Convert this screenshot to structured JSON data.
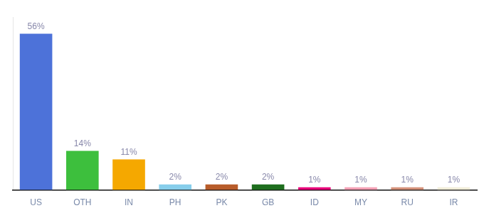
{
  "chart_data": {
    "type": "bar",
    "categories": [
      "US",
      "OTH",
      "IN",
      "PH",
      "PK",
      "GB",
      "ID",
      "MY",
      "RU",
      "IR"
    ],
    "values": [
      56,
      14,
      11,
      2,
      2,
      2,
      1,
      1,
      1,
      1
    ],
    "value_labels": [
      "56%",
      "14%",
      "11%",
      "2%",
      "2%",
      "2%",
      "1%",
      "1%",
      "1%",
      "1%"
    ],
    "colors": [
      "#4d72d9",
      "#3dbf3d",
      "#f5a800",
      "#87ceeb",
      "#b85c2a",
      "#1e6e1e",
      "#e8007a",
      "#f4a0b5",
      "#d4917a",
      "#f0ecd8"
    ],
    "ylim": [
      0,
      62
    ],
    "data_labels": true,
    "tick_labels": "x",
    "grid": false
  }
}
